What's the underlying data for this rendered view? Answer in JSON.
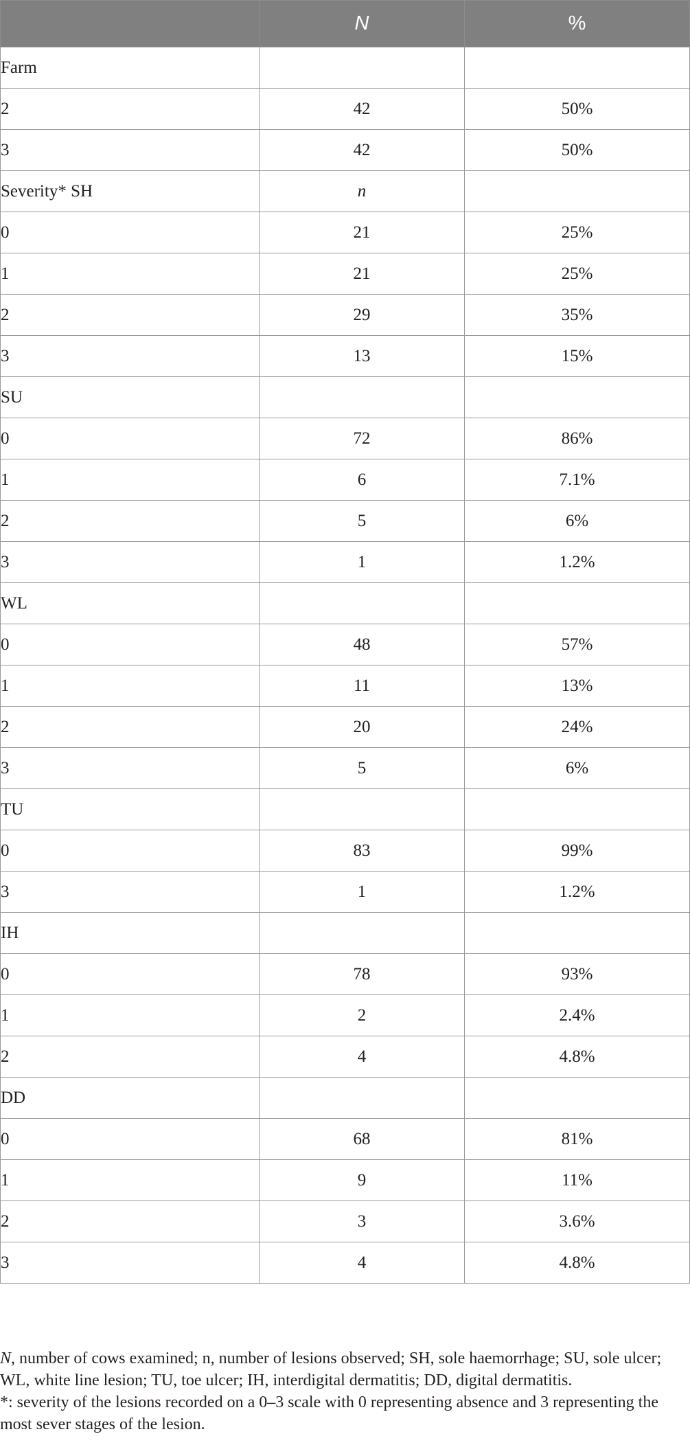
{
  "table": {
    "headers": [
      "",
      "N",
      "%"
    ],
    "groups": [
      {
        "label": "Farm",
        "n_label": "",
        "rows": [
          {
            "level": "2",
            "n": "42",
            "pct": "50%"
          },
          {
            "level": "3",
            "n": "42",
            "pct": "50%"
          }
        ]
      },
      {
        "label": "Severity* SH",
        "n_label": "n",
        "rows": [
          {
            "level": "0",
            "n": "21",
            "pct": "25%"
          },
          {
            "level": "1",
            "n": "21",
            "pct": "25%"
          },
          {
            "level": "2",
            "n": "29",
            "pct": "35%"
          },
          {
            "level": "3",
            "n": "13",
            "pct": "15%"
          }
        ]
      },
      {
        "label": "SU",
        "n_label": "",
        "rows": [
          {
            "level": "0",
            "n": "72",
            "pct": "86%"
          },
          {
            "level": "1",
            "n": "6",
            "pct": "7.1%"
          },
          {
            "level": "2",
            "n": "5",
            "pct": "6%"
          },
          {
            "level": "3",
            "n": "1",
            "pct": "1.2%"
          }
        ]
      },
      {
        "label": "WL",
        "n_label": "",
        "rows": [
          {
            "level": "0",
            "n": "48",
            "pct": "57%"
          },
          {
            "level": "1",
            "n": "11",
            "pct": "13%"
          },
          {
            "level": "2",
            "n": "20",
            "pct": "24%"
          },
          {
            "level": "3",
            "n": "5",
            "pct": "6%"
          }
        ]
      },
      {
        "label": "TU",
        "n_label": "",
        "rows": [
          {
            "level": "0",
            "n": "83",
            "pct": "99%"
          },
          {
            "level": "3",
            "n": "1",
            "pct": "1.2%"
          }
        ]
      },
      {
        "label": "IH",
        "n_label": "",
        "rows": [
          {
            "level": "0",
            "n": "78",
            "pct": "93%"
          },
          {
            "level": "1",
            "n": "2",
            "pct": "2.4%"
          },
          {
            "level": "2",
            "n": "4",
            "pct": "4.8%"
          }
        ]
      },
      {
        "label": "DD",
        "n_label": "",
        "rows": [
          {
            "level": "0",
            "n": "68",
            "pct": "81%"
          },
          {
            "level": "1",
            "n": "9",
            "pct": "11%"
          },
          {
            "level": "2",
            "n": "3",
            "pct": "3.6%"
          },
          {
            "level": "3",
            "n": "4",
            "pct": "4.8%"
          }
        ]
      }
    ]
  },
  "footnote": {
    "lead": "N",
    "abbreviations": ", number of cows examined; n, number of lesions observed; SH, sole haemorrhage; SU, sole ulcer; WL, white line lesion; TU, toe ulcer; IH, interdigital dermatitis; DD, digital dermatitis.",
    "severity": "*: severity of the lesions recorded on a 0–3 scale with 0 representing absence and 3 representing the most sever stages of the lesion."
  },
  "colors": {
    "header_bg": "#7f807f",
    "header_text": "#ffffff",
    "border": "#9a9a9a",
    "text": "#231f20"
  }
}
